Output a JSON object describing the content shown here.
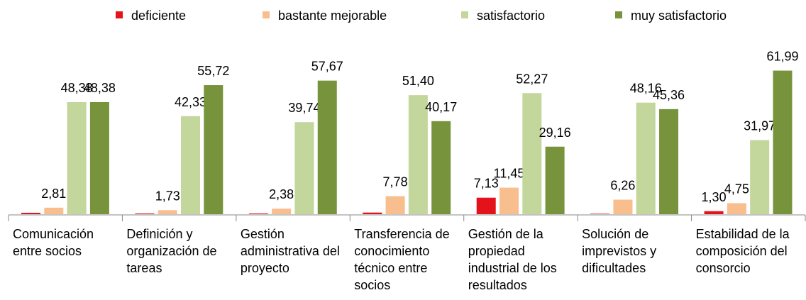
{
  "chart_data": {
    "type": "bar",
    "categories": [
      "Comunicación entre socios",
      "Definición y organización de tareas",
      "Gestión administrativa del proyecto",
      "Transferencia de conocimiento técnico entre socios",
      "Gestión de la propiedad industrial de los resultados",
      "Solución de imprevistos y dificultades",
      "Estabilidad de la composición del consorcio"
    ],
    "series": [
      {
        "name": "deficiente",
        "color": "#e3121b",
        "values": [
          0.6,
          0.3,
          0.3,
          0.7,
          7.13,
          0.2,
          1.3
        ],
        "value_labels": [
          null,
          null,
          null,
          null,
          "7,13",
          null,
          "1,30"
        ]
      },
      {
        "name": "bastante mejorable",
        "color": "#f9be8e",
        "values": [
          2.81,
          1.73,
          2.38,
          7.78,
          11.45,
          6.26,
          4.75
        ],
        "value_labels": [
          "2,81",
          "1,73",
          "2,38",
          "7,78",
          "11,45",
          "6,26",
          "4,75"
        ]
      },
      {
        "name": "satisfactorio",
        "color": "#c3d69b",
        "values": [
          48.38,
          42.33,
          39.74,
          51.4,
          52.27,
          48.16,
          31.97
        ],
        "value_labels": [
          "48,38",
          "42,33",
          "39,74",
          "51,40",
          "52,27",
          "48,16",
          "31,97"
        ]
      },
      {
        "name": "muy satisfactorio",
        "color": "#77933c",
        "values": [
          48.38,
          55.72,
          57.67,
          40.17,
          29.16,
          45.36,
          61.99
        ],
        "value_labels": [
          "48,38",
          "55,72",
          "57,67",
          "40,17",
          "29,16",
          "45,36",
          "61,99"
        ]
      }
    ],
    "ylim": [
      0,
      70
    ],
    "legend": "top"
  }
}
